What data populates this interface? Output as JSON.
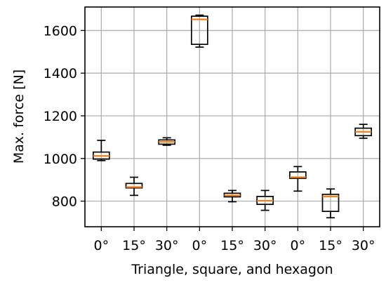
{
  "chart_data": {
    "type": "box",
    "xlabel": "Triangle, square, and hexagon",
    "ylabel": "Max. force [N]",
    "ylim": [
      680,
      1710
    ],
    "yticks": [
      800,
      1000,
      1200,
      1400,
      1600
    ],
    "grid": true,
    "categories": [
      "0°",
      "15°",
      "30°",
      "0°",
      "15°",
      "30°",
      "0°",
      "15°",
      "30°"
    ],
    "boxes": [
      {
        "whislo": 990,
        "q1": 997,
        "med": 1012,
        "q3": 1030,
        "whishi": 1085
      },
      {
        "whislo": 827,
        "q1": 862,
        "med": 866,
        "q3": 883,
        "whishi": 912
      },
      {
        "whislo": 1062,
        "q1": 1067,
        "med": 1078,
        "q3": 1087,
        "whishi": 1097
      },
      {
        "whislo": 1522,
        "q1": 1535,
        "med": 1652,
        "q3": 1667,
        "whishi": 1672
      },
      {
        "whislo": 797,
        "q1": 820,
        "med": 827,
        "q3": 837,
        "whishi": 850
      },
      {
        "whislo": 757,
        "q1": 785,
        "med": 802,
        "q3": 822,
        "whishi": 850
      },
      {
        "whislo": 847,
        "q1": 907,
        "med": 912,
        "q3": 937,
        "whishi": 962
      },
      {
        "whislo": 722,
        "q1": 752,
        "med": 822,
        "q3": 832,
        "whishi": 857
      },
      {
        "whislo": 1095,
        "q1": 1107,
        "med": 1125,
        "q3": 1142,
        "whishi": 1160
      }
    ]
  }
}
